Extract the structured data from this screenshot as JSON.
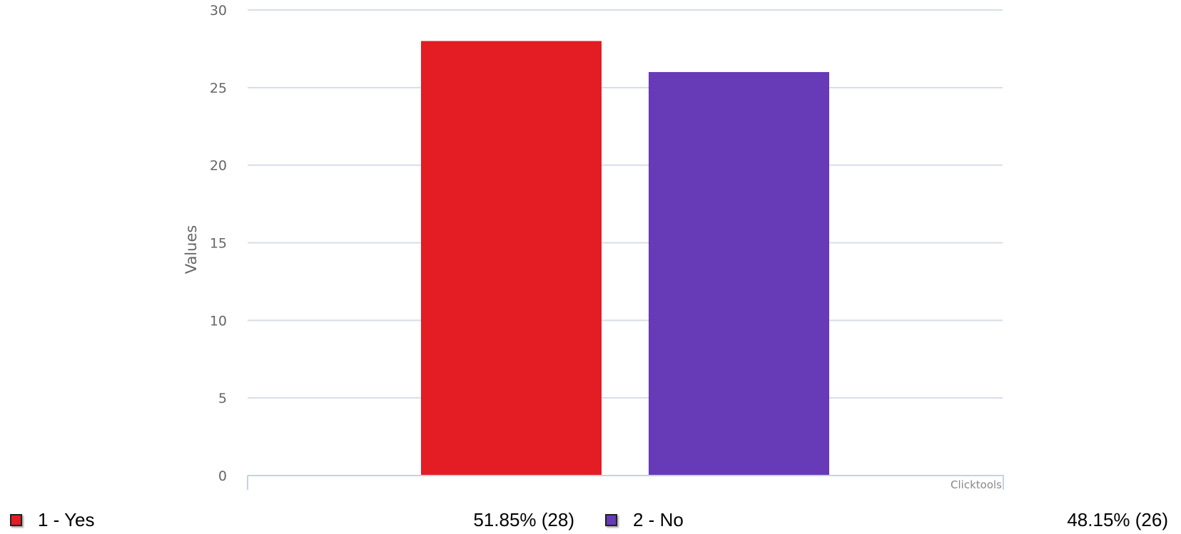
{
  "chart_data": {
    "type": "bar",
    "categories": [
      "1 - Yes",
      "2 - No"
    ],
    "values": [
      28,
      26
    ],
    "colors": [
      "#e41c24",
      "#673ab7"
    ],
    "ylabel": "Values",
    "xlabel": "",
    "ylim": [
      0,
      30
    ],
    "yticks": [
      0,
      5,
      10,
      15,
      20,
      25,
      30
    ],
    "grid": true,
    "credit": "Clicktools"
  },
  "legend": {
    "items": [
      {
        "label": "1 - Yes",
        "value": "51.85% (28)",
        "color": "#e41c24"
      },
      {
        "label": "2 - No",
        "value": "48.15% (26)",
        "color": "#673ab7"
      }
    ]
  }
}
